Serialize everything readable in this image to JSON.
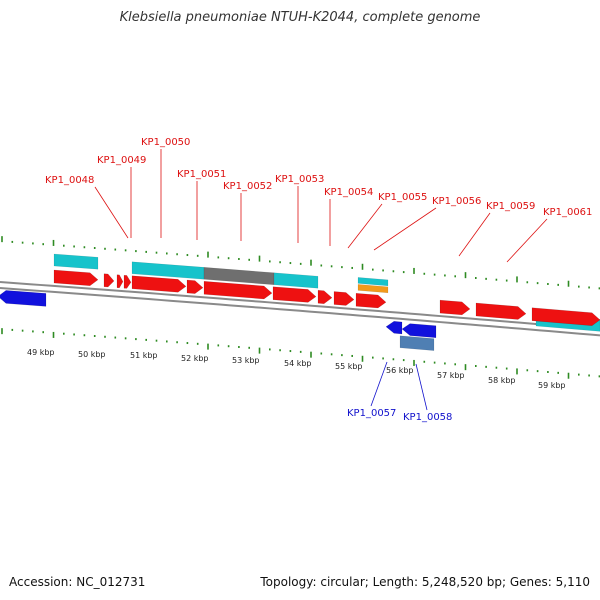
{
  "title": "Klebsiella pneumoniae NTUH-K2044, complete genome",
  "colors": {
    "backbone": "#8a8a8a",
    "tick": "#2e8b22",
    "forward_cds": "#ee1111",
    "reverse_cds": "#1111dd",
    "forward_label": "#dd1111",
    "reverse_label": "#1111cc",
    "cyan_feature": "#17c3cb",
    "gray_feature": "#6f6f6f",
    "steelblue_feature": "#4f7fb3",
    "orange_feature": "#f29a1c"
  },
  "scale_labels": [
    "49 kbp",
    "50 kbp",
    "51 kbp",
    "52 kbp",
    "53 kbp",
    "54 kbp",
    "55 kbp",
    "56 kbp",
    "57 kbp",
    "58 kbp",
    "59 kbp"
  ],
  "forward_gene_labels": [
    "KP1_0048",
    "KP1_0049",
    "KP1_0050",
    "KP1_0051",
    "KP1_0052",
    "KP1_0053",
    "KP1_0054",
    "KP1_0055",
    "KP1_0056",
    "KP1_0059",
    "KP1_0061"
  ],
  "reverse_gene_labels": [
    "KP1_0057",
    "KP1_0058"
  ],
  "footer": {
    "accession": "Accession: NC_012731",
    "summary": "Topology: circular; Length: 5,248,520 bp; Genes: 5,110"
  }
}
